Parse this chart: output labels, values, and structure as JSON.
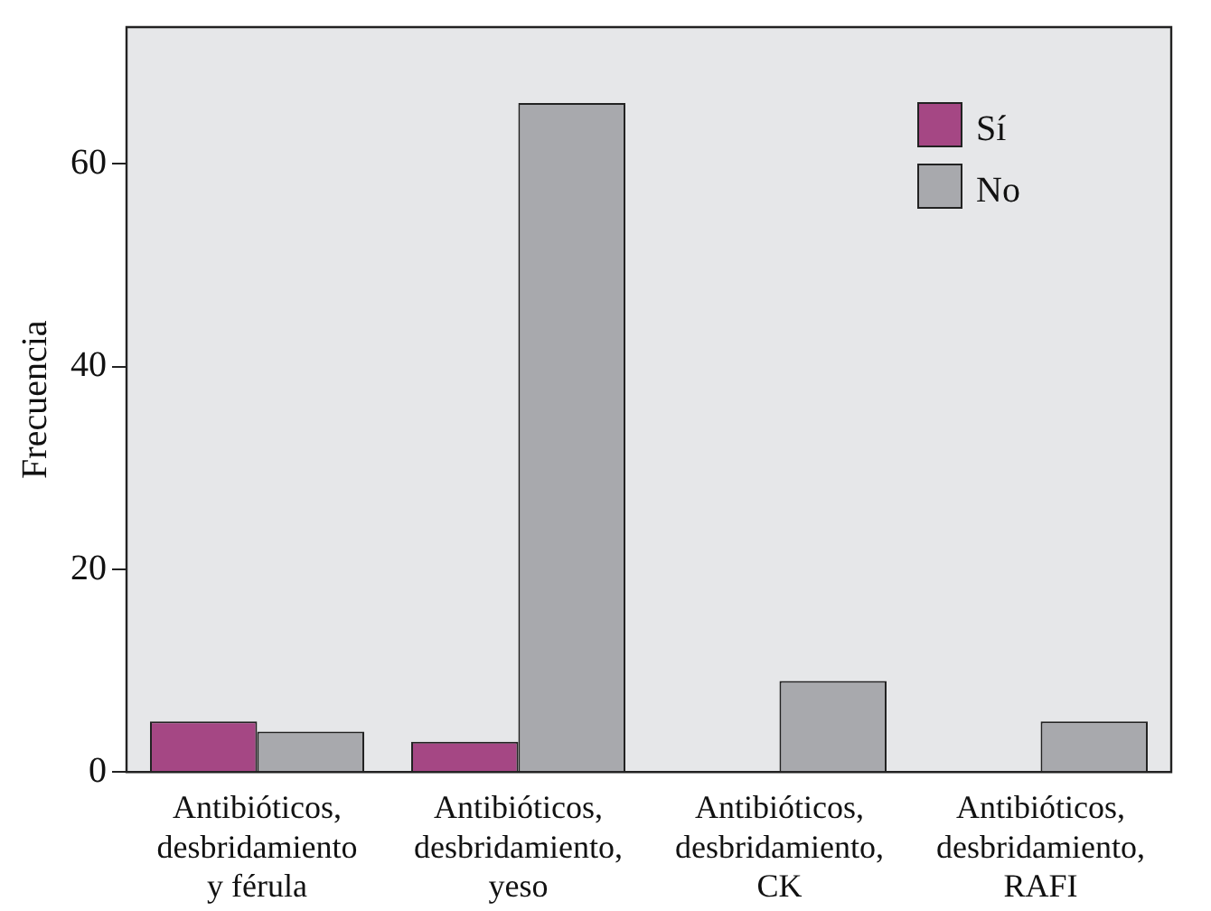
{
  "chart_data": {
    "type": "bar",
    "ylabel": "Frecuencia",
    "categories": [
      "Antibióticos,\ndesbridamiento\ny férula",
      "Antibióticos,\ndesbridamiento,\nyeso",
      "Antibióticos,\ndesbridamiento,\nCK",
      "Antibióticos,\ndesbridamiento,\nRAFI"
    ],
    "series": [
      {
        "name": "Sí",
        "color": "#a54784",
        "values": [
          5,
          3,
          null,
          null
        ]
      },
      {
        "name": "No",
        "color": "#a8a9ad",
        "values": [
          4,
          66,
          9,
          5
        ]
      }
    ],
    "ylim": [
      0,
      73.5
    ],
    "yticks": [
      0,
      20,
      40,
      60
    ],
    "grid": false,
    "legend": "top right"
  }
}
